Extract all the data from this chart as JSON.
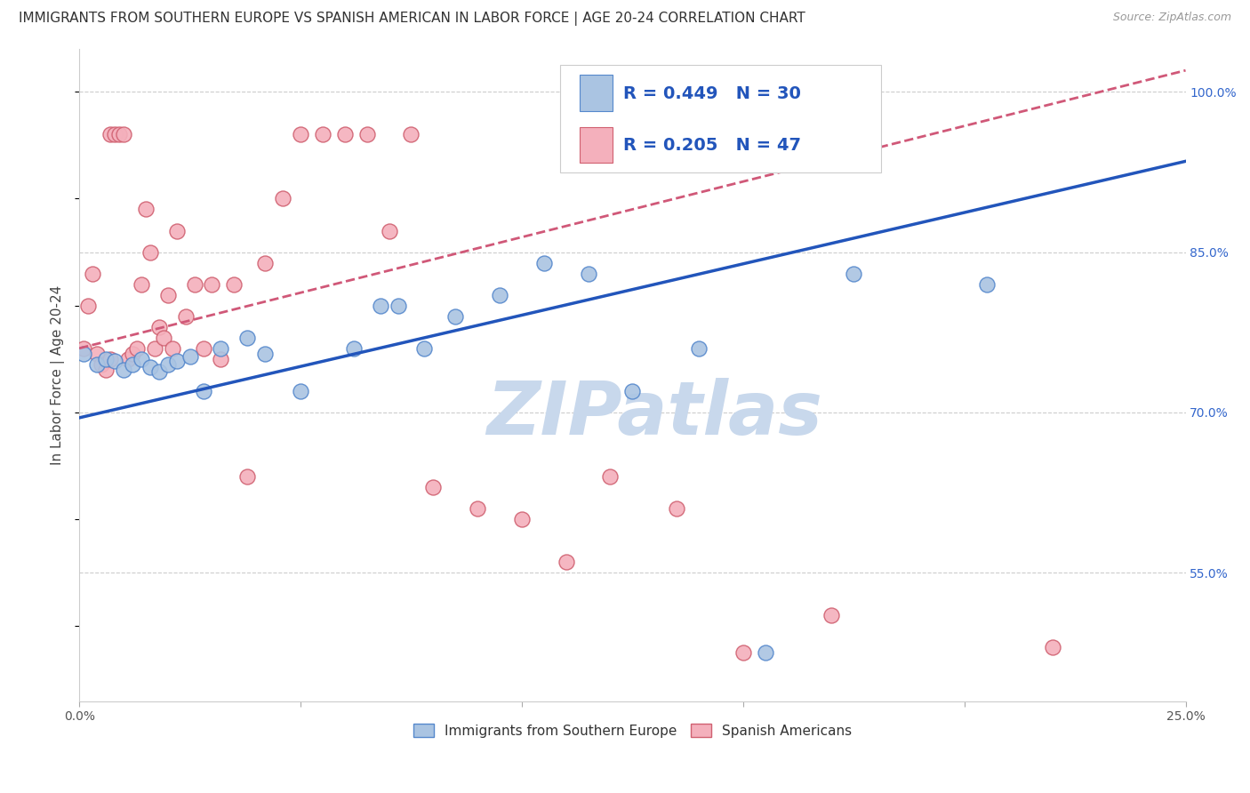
{
  "title": "IMMIGRANTS FROM SOUTHERN EUROPE VS SPANISH AMERICAN IN LABOR FORCE | AGE 20-24 CORRELATION CHART",
  "source": "Source: ZipAtlas.com",
  "ylabel": "In Labor Force | Age 20-24",
  "xlim": [
    0.0,
    0.25
  ],
  "ylim": [
    0.43,
    1.04
  ],
  "xticks": [
    0.0,
    0.05,
    0.1,
    0.15,
    0.2,
    0.25
  ],
  "xticklabels": [
    "0.0%",
    "",
    "",
    "",
    "",
    "25.0%"
  ],
  "yticks_right": [
    0.55,
    0.7,
    0.85,
    1.0
  ],
  "ytick_labels_right": [
    "55.0%",
    "70.0%",
    "85.0%",
    "100.0%"
  ],
  "blue_color": "#aac4e2",
  "blue_edge_color": "#5588cc",
  "blue_line_color": "#2255bb",
  "pink_color": "#f4b0bc",
  "pink_edge_color": "#d06070",
  "pink_line_color": "#d05878",
  "blue_scatter_x": [
    0.001,
    0.004,
    0.006,
    0.008,
    0.01,
    0.012,
    0.014,
    0.016,
    0.018,
    0.02,
    0.022,
    0.025,
    0.028,
    0.032,
    0.038,
    0.042,
    0.05,
    0.062,
    0.068,
    0.072,
    0.078,
    0.085,
    0.095,
    0.105,
    0.115,
    0.125,
    0.14,
    0.155,
    0.175,
    0.205
  ],
  "blue_scatter_y": [
    0.755,
    0.745,
    0.75,
    0.748,
    0.74,
    0.745,
    0.75,
    0.742,
    0.738,
    0.745,
    0.748,
    0.752,
    0.72,
    0.76,
    0.77,
    0.755,
    0.72,
    0.76,
    0.8,
    0.8,
    0.76,
    0.79,
    0.81,
    0.84,
    0.83,
    0.72,
    0.76,
    0.475,
    0.83,
    0.82
  ],
  "pink_scatter_x": [
    0.001,
    0.002,
    0.003,
    0.004,
    0.005,
    0.006,
    0.007,
    0.007,
    0.008,
    0.009,
    0.01,
    0.011,
    0.012,
    0.013,
    0.014,
    0.015,
    0.016,
    0.017,
    0.018,
    0.019,
    0.02,
    0.021,
    0.022,
    0.024,
    0.026,
    0.028,
    0.03,
    0.032,
    0.035,
    0.038,
    0.042,
    0.046,
    0.05,
    0.055,
    0.06,
    0.065,
    0.07,
    0.075,
    0.08,
    0.09,
    0.1,
    0.11,
    0.12,
    0.135,
    0.15,
    0.17,
    0.22
  ],
  "pink_scatter_y": [
    0.76,
    0.8,
    0.83,
    0.755,
    0.745,
    0.74,
    0.75,
    0.96,
    0.96,
    0.96,
    0.96,
    0.75,
    0.755,
    0.76,
    0.82,
    0.89,
    0.85,
    0.76,
    0.78,
    0.77,
    0.81,
    0.76,
    0.87,
    0.79,
    0.82,
    0.76,
    0.82,
    0.75,
    0.82,
    0.64,
    0.84,
    0.9,
    0.96,
    0.96,
    0.96,
    0.96,
    0.87,
    0.96,
    0.63,
    0.61,
    0.6,
    0.56,
    0.64,
    0.61,
    0.475,
    0.51,
    0.48
  ],
  "blue_trend_x0": 0.0,
  "blue_trend_y0": 0.695,
  "blue_trend_x1": 0.25,
  "blue_trend_y1": 0.935,
  "pink_trend_x0": 0.0,
  "pink_trend_y0": 0.76,
  "pink_trend_x1": 0.25,
  "pink_trend_y1": 1.02,
  "watermark": "ZIPatlas",
  "watermark_color": "#c8d8ec",
  "legend_labels": [
    "Immigrants from Southern Europe",
    "Spanish Americans"
  ],
  "title_fontsize": 11,
  "axis_label_fontsize": 11,
  "tick_fontsize": 10,
  "legend_fontsize": 11,
  "blue_label_R": "R = 0.449",
  "blue_label_N": "N = 30",
  "pink_label_R": "R = 0.205",
  "pink_label_N": "N = 47"
}
